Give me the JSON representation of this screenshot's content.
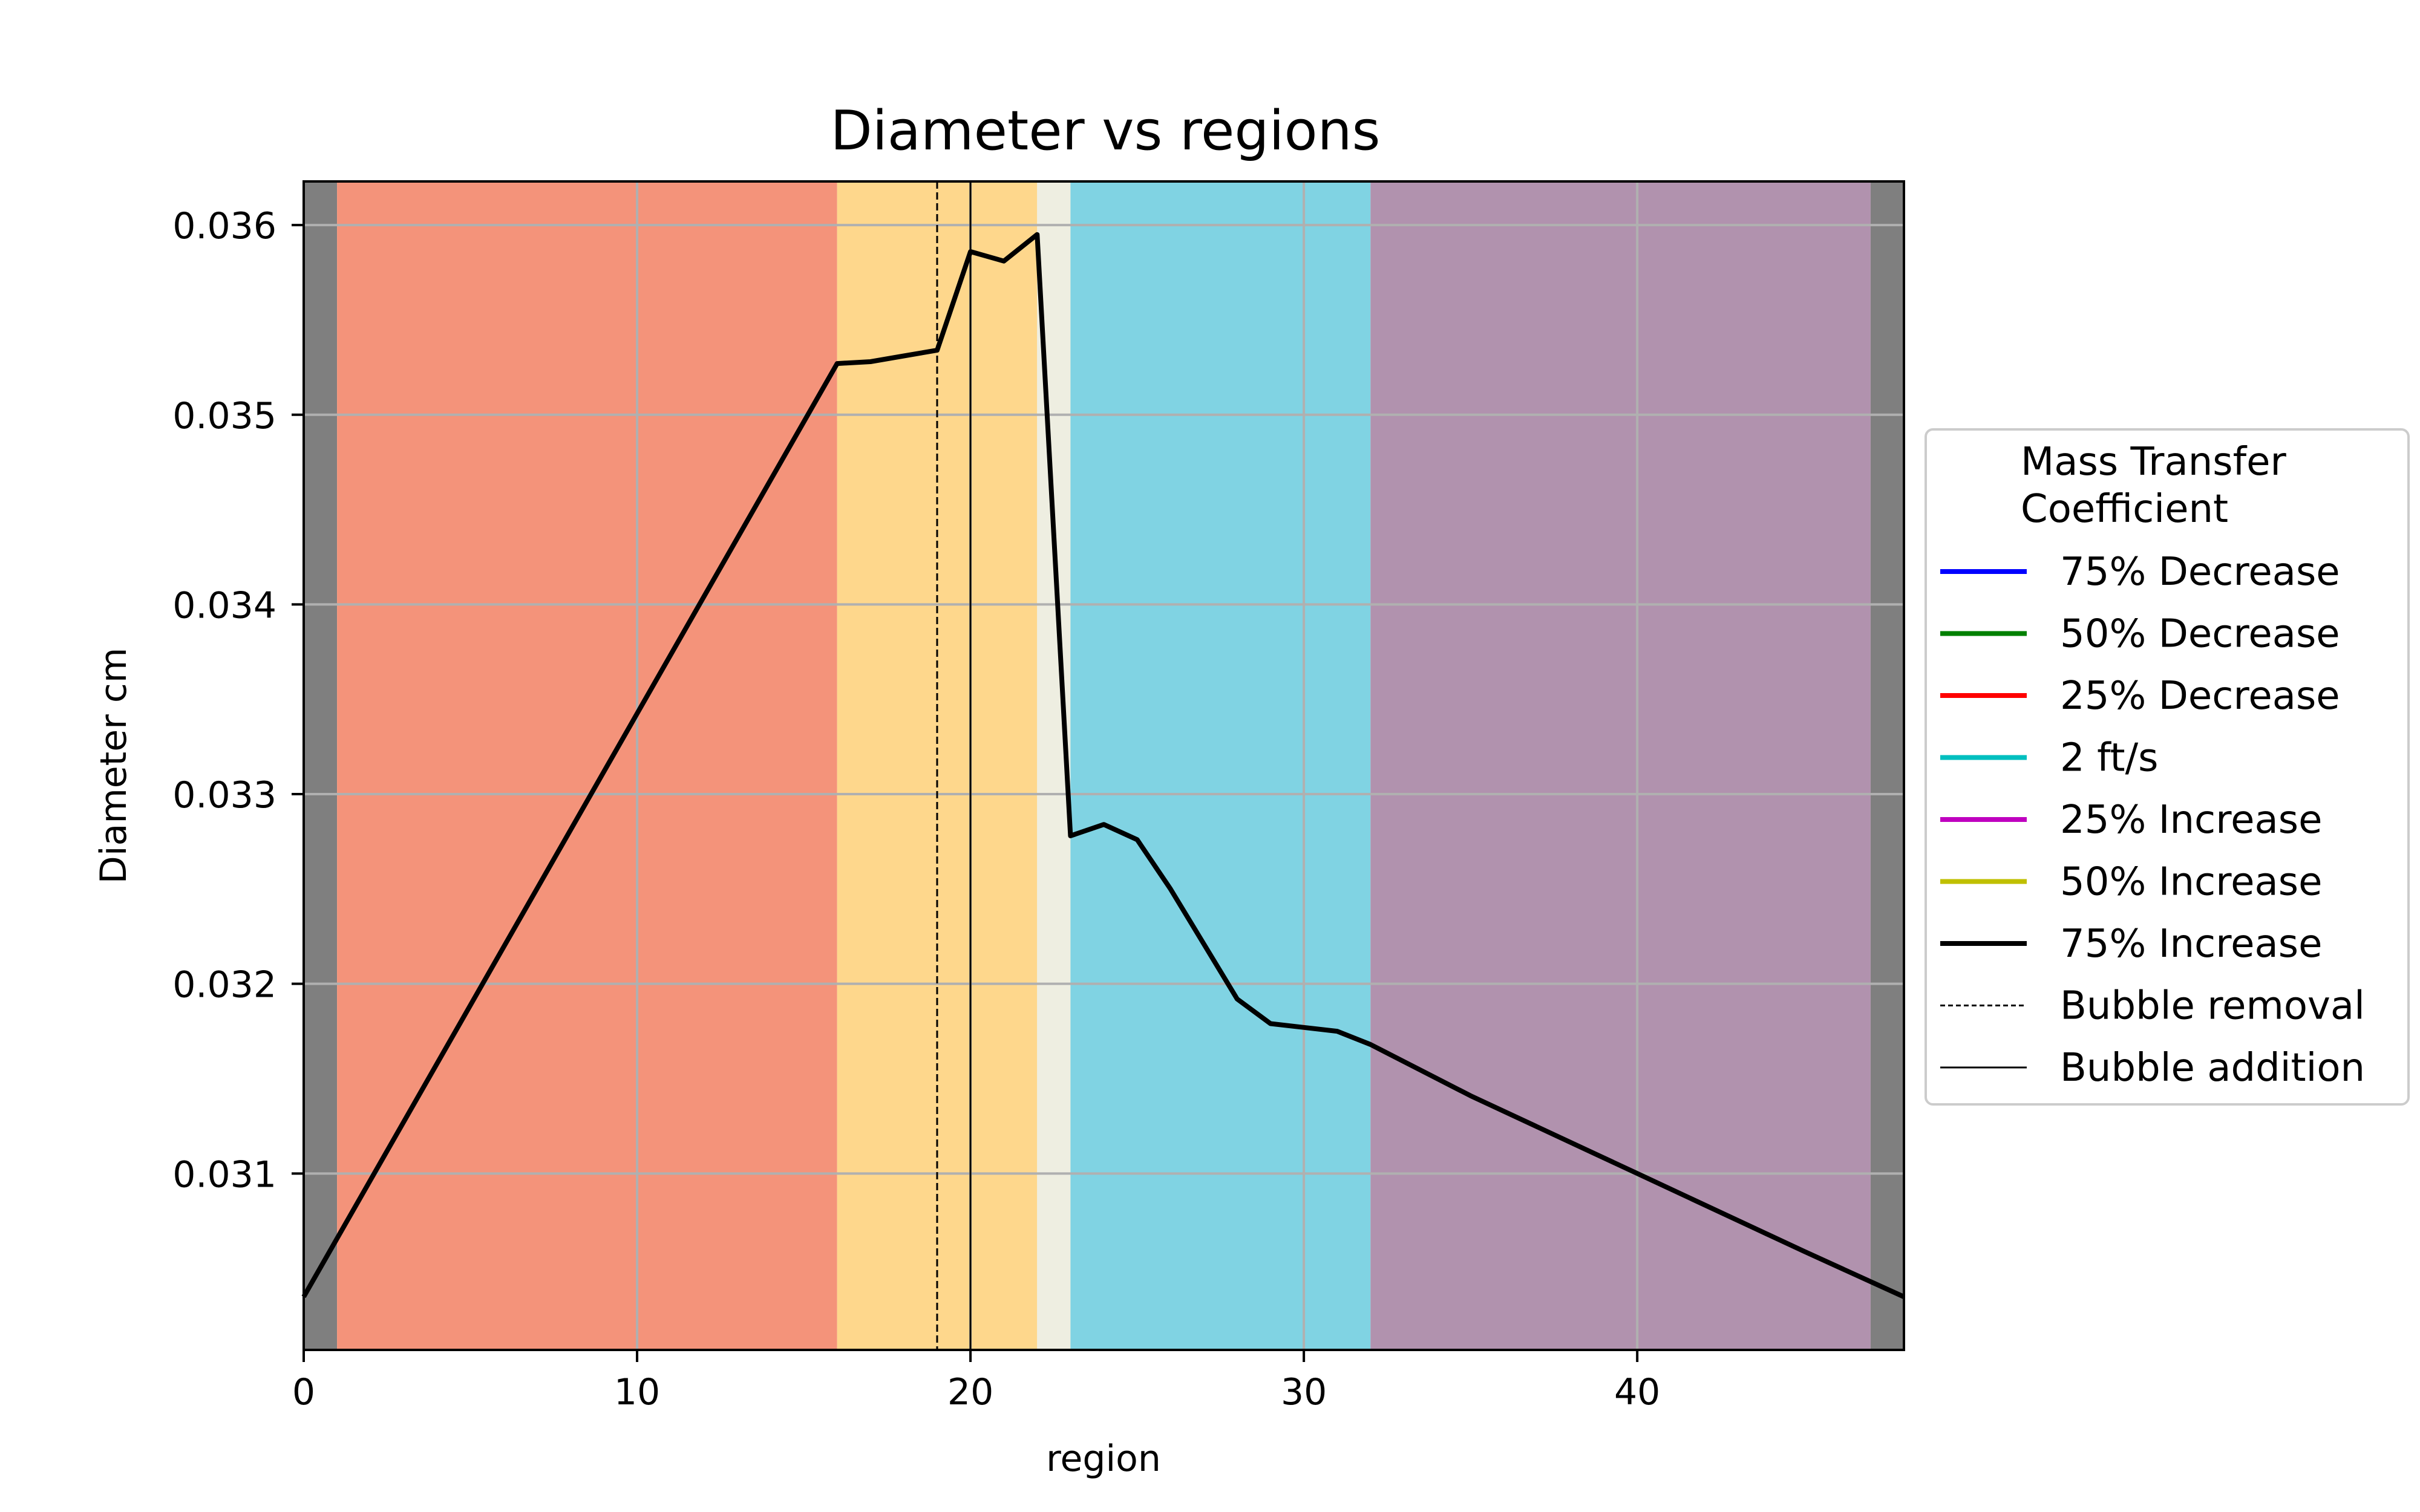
{
  "chart_data": {
    "type": "line",
    "title": "Diameter vs regions",
    "xlabel": "region",
    "ylabel": "Diameter cm",
    "xlim": [
      0,
      48
    ],
    "ylim": [
      0.03007,
      0.03623
    ],
    "xticks": [
      0,
      10,
      20,
      30,
      40
    ],
    "xtick_labels": [
      "0",
      "10",
      "20",
      "30",
      "40"
    ],
    "yticks": [
      0.031,
      0.032,
      0.033,
      0.034,
      0.035,
      0.036
    ],
    "ytick_labels": [
      "0.031",
      "0.032",
      "0.033",
      "0.034",
      "0.035",
      "0.036"
    ],
    "grid": true,
    "legend_placement": "outside-right",
    "legend_title": "Mass Transfer\nCoefficient",
    "legend_entries": [
      {
        "label": "75% Decrease",
        "color": "#0000ff",
        "style": "solid"
      },
      {
        "label": "50% Decrease",
        "color": "#008000",
        "style": "solid"
      },
      {
        "label": "25% Decrease",
        "color": "#ff0000",
        "style": "solid"
      },
      {
        "label": "2 ft/s",
        "color": "#00bfbf",
        "style": "solid"
      },
      {
        "label": "25% Increase",
        "color": "#bf00bf",
        "style": "solid"
      },
      {
        "label": "50% Increase",
        "color": "#bfbf00",
        "style": "solid"
      },
      {
        "label": "75% Increase",
        "color": "#000000",
        "style": "solid"
      },
      {
        "label": "Bubble removal",
        "color": "#000000",
        "style": "dashed-thin"
      },
      {
        "label": "Bubble addition",
        "color": "#000000",
        "style": "solid-thin"
      }
    ],
    "region_bands": [
      {
        "x0": 0,
        "x1": 1,
        "color": "#7f7f7f"
      },
      {
        "x0": 1,
        "x1": 16,
        "color": "#f4937a"
      },
      {
        "x0": 16,
        "x1": 22,
        "color": "#fed78c"
      },
      {
        "x0": 22,
        "x1": 23,
        "color": "#eeeee1"
      },
      {
        "x0": 23,
        "x1": 32,
        "color": "#80d3e3"
      },
      {
        "x0": 32,
        "x1": 47,
        "color": "#b192ae"
      },
      {
        "x0": 47,
        "x1": 48,
        "color": "#7f7f7f"
      }
    ],
    "vlines": [
      {
        "x": 19,
        "style": "dashed"
      },
      {
        "x": 20,
        "style": "solid"
      }
    ],
    "series": [
      {
        "name": "75% Increase",
        "color": "#000000",
        "x": [
          0,
          16,
          17,
          18,
          19,
          20,
          21,
          22,
          23,
          24,
          25,
          26,
          27,
          28,
          29,
          30,
          31,
          32,
          35,
          40,
          45,
          48
        ],
        "values": [
          0.03035,
          0.03527,
          0.03528,
          0.03531,
          0.03534,
          0.03586,
          0.03581,
          0.03595,
          0.03278,
          0.03284,
          0.03276,
          0.0325,
          0.03221,
          0.03192,
          0.03179,
          0.03177,
          0.03175,
          0.03168,
          0.03141,
          0.031,
          0.03059,
          0.03035
        ]
      }
    ]
  }
}
